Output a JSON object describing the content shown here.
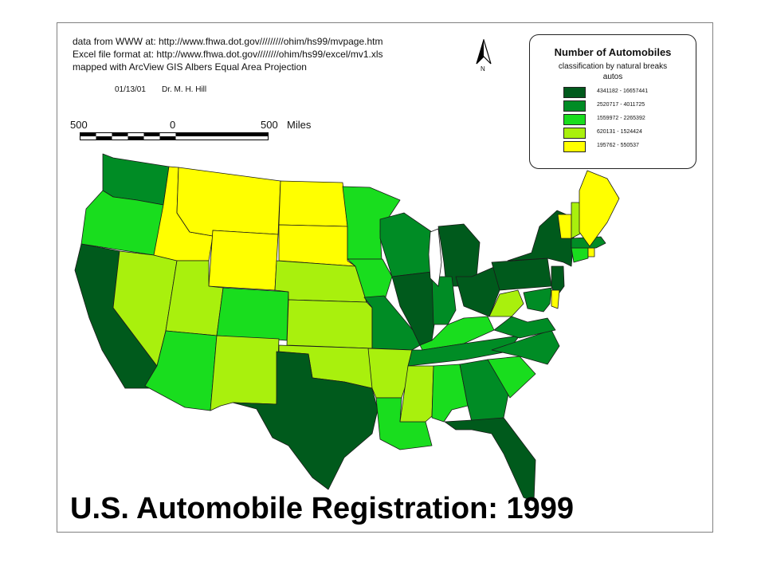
{
  "source_lines": [
    "data from WWW at: http://www.fhwa.dot.gov/////////ohim/hs99/mvpage.htm",
    "Excel file format at: http://www.fhwa.dot.gov////////ohim/hs99/excel/mv1.xls",
    "mapped with ArcView GIS  Albers Equal Area Projection"
  ],
  "date": "01/13/01",
  "author": "Dr. M. H. Hill",
  "scale_bar": {
    "left_label": "500",
    "mid_label": "0",
    "right_label": "500",
    "units": "Miles"
  },
  "north_arrow": {
    "label": "N"
  },
  "legend": {
    "title": "Number of Automobiles",
    "subtitle": "classification by natural breaks",
    "unit": "autos",
    "classes": [
      {
        "label": "4341182 - 16657441",
        "color": "#005a1c"
      },
      {
        "label": "2520717 - 4011725",
        "color": "#008c25"
      },
      {
        "label": "1559972 - 2265392",
        "color": "#19dd1e"
      },
      {
        "label": "620131 - 1524424",
        "color": "#a9f00d"
      },
      {
        "label": "195762 - 550537",
        "color": "#ffff00"
      }
    ]
  },
  "map": {
    "states": [
      {
        "name": "Washington",
        "class": 1
      },
      {
        "name": "Oregon",
        "class": 2
      },
      {
        "name": "California",
        "class": 0
      },
      {
        "name": "Nevada",
        "class": 3
      },
      {
        "name": "Idaho",
        "class": 4
      },
      {
        "name": "Montana",
        "class": 4
      },
      {
        "name": "Wyoming",
        "class": 4
      },
      {
        "name": "Utah",
        "class": 3
      },
      {
        "name": "Arizona",
        "class": 2
      },
      {
        "name": "Colorado",
        "class": 2
      },
      {
        "name": "New Mexico",
        "class": 3
      },
      {
        "name": "North Dakota",
        "class": 4
      },
      {
        "name": "South Dakota",
        "class": 4
      },
      {
        "name": "Nebraska",
        "class": 3
      },
      {
        "name": "Kansas",
        "class": 3
      },
      {
        "name": "Oklahoma",
        "class": 3
      },
      {
        "name": "Texas",
        "class": 0
      },
      {
        "name": "Minnesota",
        "class": 2
      },
      {
        "name": "Iowa",
        "class": 2
      },
      {
        "name": "Missouri",
        "class": 1
      },
      {
        "name": "Arkansas",
        "class": 3
      },
      {
        "name": "Louisiana",
        "class": 2
      },
      {
        "name": "Wisconsin",
        "class": 1
      },
      {
        "name": "Illinois",
        "class": 0
      },
      {
        "name": "Michigan",
        "class": 0
      },
      {
        "name": "Indiana",
        "class": 1
      },
      {
        "name": "Ohio",
        "class": 0
      },
      {
        "name": "Kentucky",
        "class": 2
      },
      {
        "name": "Tennessee",
        "class": 1
      },
      {
        "name": "Mississippi",
        "class": 3
      },
      {
        "name": "Alabama",
        "class": 2
      },
      {
        "name": "Georgia",
        "class": 1
      },
      {
        "name": "Florida",
        "class": 0
      },
      {
        "name": "South Carolina",
        "class": 2
      },
      {
        "name": "North Carolina",
        "class": 1
      },
      {
        "name": "Virginia",
        "class": 1
      },
      {
        "name": "West Virginia",
        "class": 3
      },
      {
        "name": "Pennsylvania",
        "class": 0
      },
      {
        "name": "New York",
        "class": 0
      },
      {
        "name": "New Jersey",
        "class": 0
      },
      {
        "name": "Maryland",
        "class": 1
      },
      {
        "name": "Delaware",
        "class": 4
      },
      {
        "name": "Connecticut",
        "class": 2
      },
      {
        "name": "Rhode Island",
        "class": 4
      },
      {
        "name": "Massachusetts",
        "class": 1
      },
      {
        "name": "Vermont",
        "class": 4
      },
      {
        "name": "New Hampshire",
        "class": 3
      },
      {
        "name": "Maine",
        "class": 4
      }
    ]
  },
  "title": "U.S. Automobile Registration: 1999"
}
